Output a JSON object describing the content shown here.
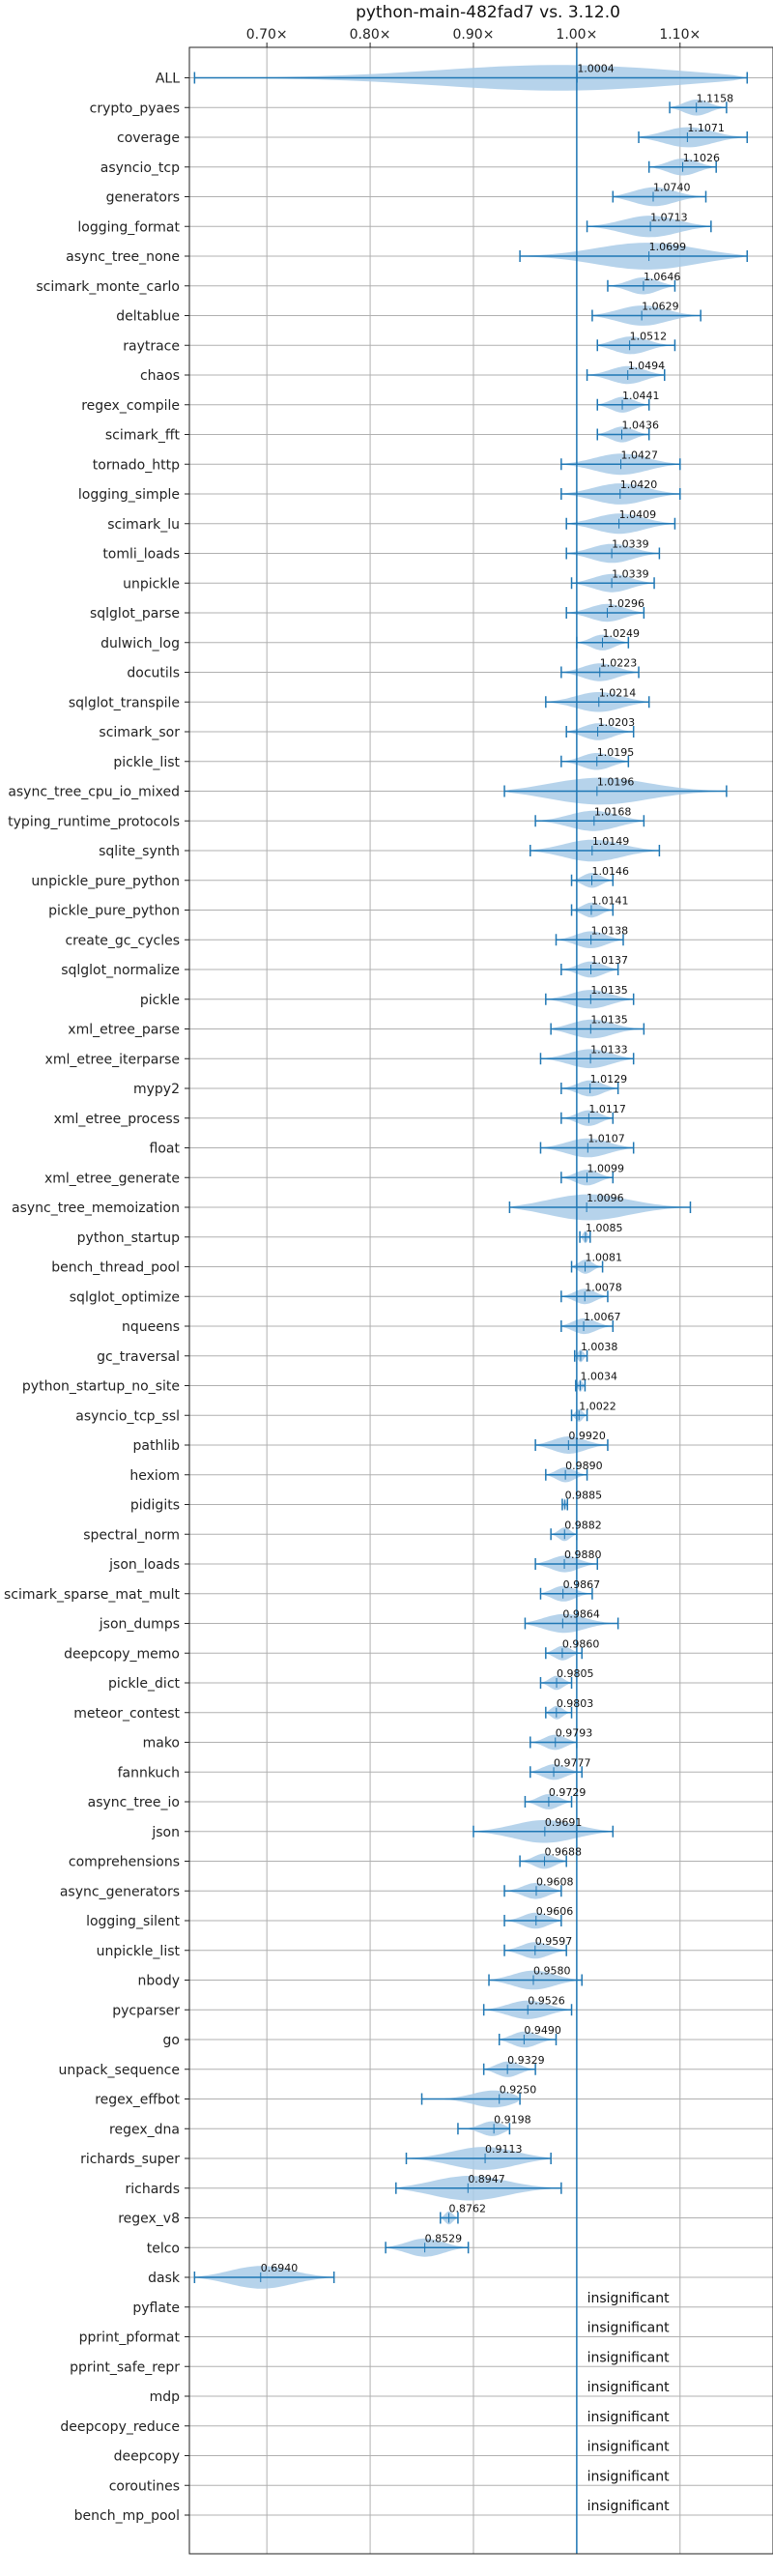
{
  "chart_data": {
    "type": "violin",
    "title": "python-main-482fad7 vs. 3.12.0",
    "x_ticks": [
      0.7,
      0.8,
      0.9,
      1.0,
      1.1
    ],
    "x_tick_labels": [
      "0.70×",
      "0.80×",
      "0.90×",
      "1.00×",
      "1.10×"
    ],
    "xlim": [
      0.625,
      1.19
    ],
    "x_tick_position": "top",
    "grid": true,
    "reference_line": 1.0,
    "insignificant_label": "insignificant",
    "colors": {
      "violin": "#a9cbe8",
      "whisker": "#1f77b4",
      "grid": "#b0b0b0",
      "reference": "#1f77b4"
    },
    "benchmarks": [
      {
        "name": "ALL",
        "value": 1.0004,
        "min": 0.63,
        "max": 1.165,
        "label": "1.0004"
      },
      {
        "name": "crypto_pyaes",
        "value": 1.1158,
        "min": 1.09,
        "max": 1.145,
        "label": "1.1158"
      },
      {
        "name": "coverage",
        "value": 1.1071,
        "min": 1.06,
        "max": 1.165,
        "label": "1.1071"
      },
      {
        "name": "asyncio_tcp",
        "value": 1.1026,
        "min": 1.07,
        "max": 1.135,
        "label": "1.1026"
      },
      {
        "name": "generators",
        "value": 1.074,
        "min": 1.035,
        "max": 1.125,
        "label": "1.0740"
      },
      {
        "name": "logging_format",
        "value": 1.0713,
        "min": 1.01,
        "max": 1.13,
        "label": "1.0713"
      },
      {
        "name": "async_tree_none",
        "value": 1.0699,
        "min": 0.945,
        "max": 1.165,
        "label": "1.0699"
      },
      {
        "name": "scimark_monte_carlo",
        "value": 1.0646,
        "min": 1.03,
        "max": 1.095,
        "label": "1.0646"
      },
      {
        "name": "deltablue",
        "value": 1.0629,
        "min": 1.015,
        "max": 1.12,
        "label": "1.0629"
      },
      {
        "name": "raytrace",
        "value": 1.0512,
        "min": 1.02,
        "max": 1.095,
        "label": "1.0512"
      },
      {
        "name": "chaos",
        "value": 1.0494,
        "min": 1.01,
        "max": 1.085,
        "label": "1.0494"
      },
      {
        "name": "regex_compile",
        "value": 1.0441,
        "min": 1.02,
        "max": 1.07,
        "label": "1.0441"
      },
      {
        "name": "scimark_fft",
        "value": 1.0436,
        "min": 1.02,
        "max": 1.07,
        "label": "1.0436"
      },
      {
        "name": "tornado_http",
        "value": 1.0427,
        "min": 0.985,
        "max": 1.1,
        "label": "1.0427"
      },
      {
        "name": "logging_simple",
        "value": 1.042,
        "min": 0.985,
        "max": 1.1,
        "label": "1.0420"
      },
      {
        "name": "scimark_lu",
        "value": 1.0409,
        "min": 0.99,
        "max": 1.095,
        "label": "1.0409"
      },
      {
        "name": "tomli_loads",
        "value": 1.0339,
        "min": 0.99,
        "max": 1.08,
        "label": "1.0339"
      },
      {
        "name": "unpickle",
        "value": 1.0339,
        "min": 0.995,
        "max": 1.075,
        "label": "1.0339"
      },
      {
        "name": "sqlglot_parse",
        "value": 1.0296,
        "min": 0.99,
        "max": 1.065,
        "label": "1.0296"
      },
      {
        "name": "dulwich_log",
        "value": 1.0249,
        "min": 1.0,
        "max": 1.05,
        "label": "1.0249"
      },
      {
        "name": "docutils",
        "value": 1.0223,
        "min": 0.985,
        "max": 1.06,
        "label": "1.0223"
      },
      {
        "name": "sqlglot_transpile",
        "value": 1.0214,
        "min": 0.97,
        "max": 1.07,
        "label": "1.0214"
      },
      {
        "name": "scimark_sor",
        "value": 1.0203,
        "min": 0.99,
        "max": 1.055,
        "label": "1.0203"
      },
      {
        "name": "pickle_list",
        "value": 1.0195,
        "min": 0.985,
        "max": 1.05,
        "label": "1.0195"
      },
      {
        "name": "async_tree_cpu_io_mixed",
        "value": 1.0196,
        "min": 0.93,
        "max": 1.145,
        "label": "1.0196"
      },
      {
        "name": "typing_runtime_protocols",
        "value": 1.0168,
        "min": 0.96,
        "max": 1.065,
        "label": "1.0168"
      },
      {
        "name": "sqlite_synth",
        "value": 1.0149,
        "min": 0.955,
        "max": 1.08,
        "label": "1.0149"
      },
      {
        "name": "unpickle_pure_python",
        "value": 1.0146,
        "min": 0.995,
        "max": 1.035,
        "label": "1.0146"
      },
      {
        "name": "pickle_pure_python",
        "value": 1.0141,
        "min": 0.995,
        "max": 1.035,
        "label": "1.0141"
      },
      {
        "name": "create_gc_cycles",
        "value": 1.0138,
        "min": 0.98,
        "max": 1.045,
        "label": "1.0138"
      },
      {
        "name": "sqlglot_normalize",
        "value": 1.0137,
        "min": 0.985,
        "max": 1.04,
        "label": "1.0137"
      },
      {
        "name": "pickle",
        "value": 1.0135,
        "min": 0.97,
        "max": 1.055,
        "label": "1.0135"
      },
      {
        "name": "xml_etree_parse",
        "value": 1.0135,
        "min": 0.975,
        "max": 1.065,
        "label": "1.0135"
      },
      {
        "name": "xml_etree_iterparse",
        "value": 1.0133,
        "min": 0.965,
        "max": 1.055,
        "label": "1.0133"
      },
      {
        "name": "mypy2",
        "value": 1.0129,
        "min": 0.985,
        "max": 1.04,
        "label": "1.0129"
      },
      {
        "name": "xml_etree_process",
        "value": 1.0117,
        "min": 0.985,
        "max": 1.035,
        "label": "1.0117"
      },
      {
        "name": "float",
        "value": 1.0107,
        "min": 0.965,
        "max": 1.055,
        "label": "1.0107"
      },
      {
        "name": "xml_etree_generate",
        "value": 1.0099,
        "min": 0.985,
        "max": 1.035,
        "label": "1.0099"
      },
      {
        "name": "async_tree_memoization",
        "value": 1.0096,
        "min": 0.935,
        "max": 1.11,
        "label": "1.0096"
      },
      {
        "name": "python_startup",
        "value": 1.0085,
        "min": 1.003,
        "max": 1.013,
        "label": "1.0085"
      },
      {
        "name": "bench_thread_pool",
        "value": 1.0081,
        "min": 0.995,
        "max": 1.025,
        "label": "1.0081"
      },
      {
        "name": "sqlglot_optimize",
        "value": 1.0078,
        "min": 0.985,
        "max": 1.03,
        "label": "1.0078"
      },
      {
        "name": "nqueens",
        "value": 1.0067,
        "min": 0.985,
        "max": 1.035,
        "label": "1.0067"
      },
      {
        "name": "gc_traversal",
        "value": 1.0038,
        "min": 0.998,
        "max": 1.01,
        "label": "1.0038"
      },
      {
        "name": "python_startup_no_site",
        "value": 1.0034,
        "min": 0.999,
        "max": 1.008,
        "label": "1.0034"
      },
      {
        "name": "asyncio_tcp_ssl",
        "value": 1.0022,
        "min": 0.995,
        "max": 1.01,
        "label": "1.0022"
      },
      {
        "name": "pathlib",
        "value": 0.992,
        "min": 0.96,
        "max": 1.03,
        "label": "0.9920"
      },
      {
        "name": "hexiom",
        "value": 0.989,
        "min": 0.97,
        "max": 1.01,
        "label": "0.9890"
      },
      {
        "name": "pidigits",
        "value": 0.9885,
        "min": 0.986,
        "max": 0.991,
        "label": "0.9885"
      },
      {
        "name": "spectral_norm",
        "value": 0.9882,
        "min": 0.975,
        "max": 1.0,
        "label": "0.9882"
      },
      {
        "name": "json_loads",
        "value": 0.988,
        "min": 0.96,
        "max": 1.02,
        "label": "0.9880"
      },
      {
        "name": "scimark_sparse_mat_mult",
        "value": 0.9867,
        "min": 0.965,
        "max": 1.015,
        "label": "0.9867"
      },
      {
        "name": "json_dumps",
        "value": 0.9864,
        "min": 0.95,
        "max": 1.04,
        "label": "0.9864"
      },
      {
        "name": "deepcopy_memo",
        "value": 0.986,
        "min": 0.97,
        "max": 1.005,
        "label": "0.9860"
      },
      {
        "name": "pickle_dict",
        "value": 0.9805,
        "min": 0.965,
        "max": 0.995,
        "label": "0.9805"
      },
      {
        "name": "meteor_contest",
        "value": 0.9803,
        "min": 0.97,
        "max": 0.995,
        "label": "0.9803"
      },
      {
        "name": "mako",
        "value": 0.9793,
        "min": 0.955,
        "max": 1.0,
        "label": "0.9793"
      },
      {
        "name": "fannkuch",
        "value": 0.9777,
        "min": 0.955,
        "max": 1.005,
        "label": "0.9777"
      },
      {
        "name": "async_tree_io",
        "value": 0.9729,
        "min": 0.95,
        "max": 0.995,
        "label": "0.9729"
      },
      {
        "name": "json",
        "value": 0.9691,
        "min": 0.9,
        "max": 1.035,
        "label": "0.9691"
      },
      {
        "name": "comprehensions",
        "value": 0.9688,
        "min": 0.945,
        "max": 0.99,
        "label": "0.9688"
      },
      {
        "name": "async_generators",
        "value": 0.9608,
        "min": 0.93,
        "max": 0.985,
        "label": "0.9608"
      },
      {
        "name": "logging_silent",
        "value": 0.9606,
        "min": 0.93,
        "max": 0.985,
        "label": "0.9606"
      },
      {
        "name": "unpickle_list",
        "value": 0.9597,
        "min": 0.93,
        "max": 0.99,
        "label": "0.9597"
      },
      {
        "name": "nbody",
        "value": 0.958,
        "min": 0.915,
        "max": 1.005,
        "label": "0.9580"
      },
      {
        "name": "pycparser",
        "value": 0.9526,
        "min": 0.91,
        "max": 0.995,
        "label": "0.9526"
      },
      {
        "name": "go",
        "value": 0.949,
        "min": 0.925,
        "max": 0.98,
        "label": "0.9490"
      },
      {
        "name": "unpack_sequence",
        "value": 0.9329,
        "min": 0.91,
        "max": 0.96,
        "label": "0.9329"
      },
      {
        "name": "regex_effbot",
        "value": 0.925,
        "min": 0.85,
        "max": 0.945,
        "label": "0.9250"
      },
      {
        "name": "regex_dna",
        "value": 0.9198,
        "min": 0.885,
        "max": 0.935,
        "label": "0.9198"
      },
      {
        "name": "richards_super",
        "value": 0.9113,
        "min": 0.835,
        "max": 0.975,
        "label": "0.9113"
      },
      {
        "name": "richards",
        "value": 0.8947,
        "min": 0.825,
        "max": 0.985,
        "label": "0.8947"
      },
      {
        "name": "regex_v8",
        "value": 0.8762,
        "min": 0.868,
        "max": 0.885,
        "label": "0.8762"
      },
      {
        "name": "telco",
        "value": 0.8529,
        "min": 0.815,
        "max": 0.895,
        "label": "0.8529"
      },
      {
        "name": "dask",
        "value": 0.694,
        "min": 0.63,
        "max": 0.765,
        "label": "0.6940"
      },
      {
        "name": "pyflate",
        "value": null,
        "min": null,
        "max": null,
        "label": "insignificant"
      },
      {
        "name": "pprint_pformat",
        "value": null,
        "min": null,
        "max": null,
        "label": "insignificant"
      },
      {
        "name": "pprint_safe_repr",
        "value": null,
        "min": null,
        "max": null,
        "label": "insignificant"
      },
      {
        "name": "mdp",
        "value": null,
        "min": null,
        "max": null,
        "label": "insignificant"
      },
      {
        "name": "deepcopy_reduce",
        "value": null,
        "min": null,
        "max": null,
        "label": "insignificant"
      },
      {
        "name": "deepcopy",
        "value": null,
        "min": null,
        "max": null,
        "label": "insignificant"
      },
      {
        "name": "coroutines",
        "value": null,
        "min": null,
        "max": null,
        "label": "insignificant"
      },
      {
        "name": "bench_mp_pool",
        "value": null,
        "min": null,
        "max": null,
        "label": "insignificant"
      }
    ]
  }
}
